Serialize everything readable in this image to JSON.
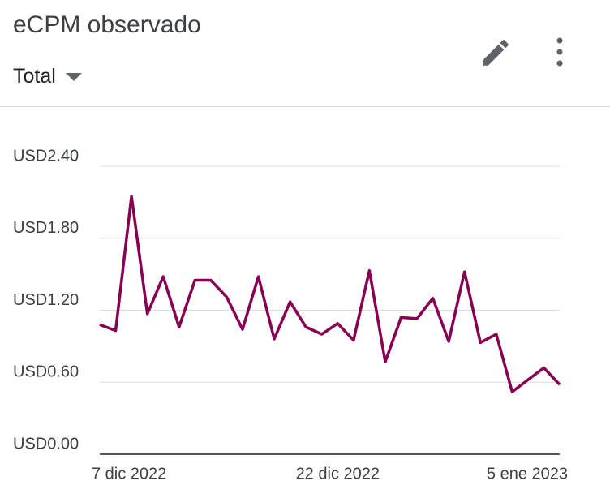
{
  "header": {
    "title": "eCPM observado",
    "dropdown": "Total"
  },
  "chart_data": {
    "type": "line",
    "categories": [
      "7 dic 2022",
      null,
      null,
      null,
      null,
      null,
      null,
      null,
      null,
      null,
      null,
      null,
      null,
      null,
      null,
      "22 dic 2022",
      null,
      null,
      null,
      null,
      null,
      null,
      null,
      null,
      null,
      null,
      null,
      null,
      null,
      "5 ene 2023"
    ],
    "series": [
      {
        "name": "Total",
        "color": "#870052",
        "values": [
          1.08,
          1.03,
          2.15,
          1.17,
          1.48,
          1.06,
          1.45,
          1.45,
          1.31,
          1.04,
          1.48,
          0.96,
          1.27,
          1.06,
          1.0,
          1.09,
          0.95,
          1.53,
          0.77,
          1.14,
          1.13,
          1.3,
          0.94,
          1.52,
          0.93,
          1.0,
          0.52,
          0.62,
          0.72,
          0.58
        ]
      }
    ],
    "ylim": [
      0,
      2.4
    ],
    "yticks": [
      {
        "value": 0,
        "label": "USD0.00"
      },
      {
        "value": 0.6,
        "label": "USD0.60"
      },
      {
        "value": 1.2,
        "label": "USD1.20"
      },
      {
        "value": 1.8,
        "label": "USD1.80"
      },
      {
        "value": 2.4,
        "label": "USD2.40"
      }
    ],
    "grid": true
  }
}
